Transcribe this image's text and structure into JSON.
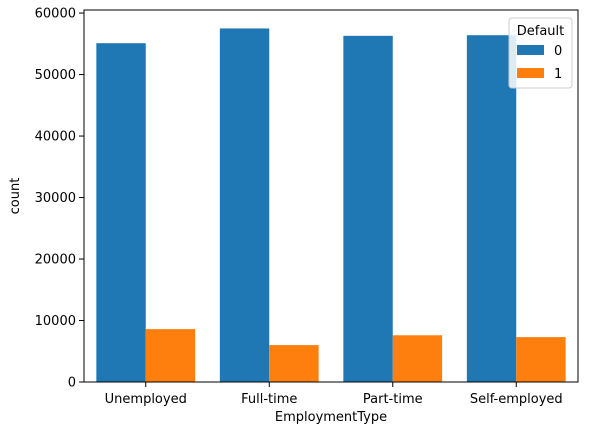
{
  "chart_data": {
    "type": "bar",
    "categories": [
      "Unemployed",
      "Full-time",
      "Part-time",
      "Self-employed"
    ],
    "series": [
      {
        "name": "0",
        "values": [
          55100,
          57500,
          56300,
          56400
        ],
        "color": "#1f77b4"
      },
      {
        "name": "1",
        "values": [
          8600,
          6000,
          7600,
          7300
        ],
        "color": "#ff7f0e"
      }
    ],
    "xlabel": "EmploymentType",
    "ylabel": "count",
    "ylim": [
      0,
      60500
    ],
    "yticks": [
      "0",
      "10000",
      "20000",
      "30000",
      "40000",
      "50000",
      "60000"
    ],
    "legend": {
      "title": "Default",
      "placement": "top-right"
    },
    "grid": false
  }
}
